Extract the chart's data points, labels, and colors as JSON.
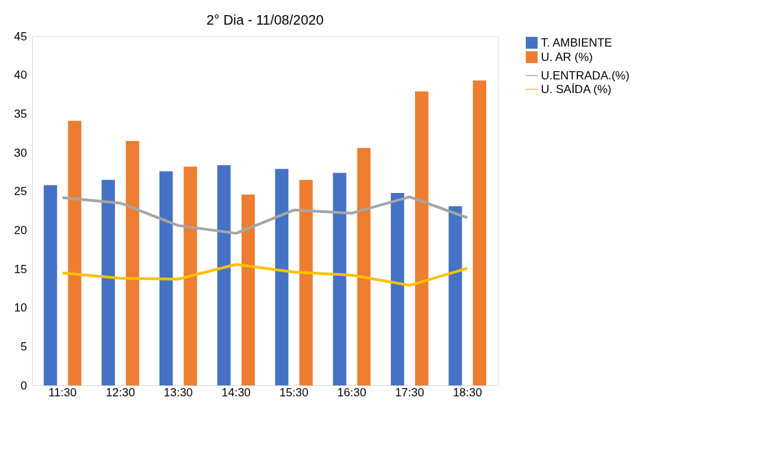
{
  "chart_data": {
    "type": "bar",
    "title": "2° Dia - 11/08/2020",
    "categories": [
      "11:30",
      "12:30",
      "13:30",
      "14:30",
      "15:30",
      "16:30",
      "17:30",
      "18:30"
    ],
    "series": [
      {
        "name": "T. AMBIENTE",
        "color": "#4472c4",
        "values": [
          25.8,
          26.5,
          27.6,
          28.4,
          27.9,
          27.4,
          24.8,
          23.1
        ]
      },
      {
        "name": "U. AR (%)",
        "color": "#ed7d31",
        "values": [
          34.1,
          31.5,
          28.2,
          24.6,
          26.5,
          30.6,
          37.9,
          39.3
        ]
      },
      {
        "name": "U.ENTRADA.(%)",
        "type": "line",
        "color": "#a5a5a5",
        "values": [
          24.2,
          23.5,
          20.6,
          19.6,
          22.6,
          22.2,
          24.3,
          21.6
        ]
      },
      {
        "name": "U. SAÍDA (%)",
        "type": "line",
        "color": "#ffc000",
        "values": [
          14.5,
          13.8,
          13.7,
          15.6,
          14.6,
          14.2,
          12.9,
          15.1
        ]
      }
    ],
    "ylim": [
      0,
      45
    ],
    "yticks": [
      0,
      5,
      10,
      15,
      20,
      25,
      30,
      35,
      40,
      45
    ],
    "grid": false,
    "legend": "right"
  }
}
